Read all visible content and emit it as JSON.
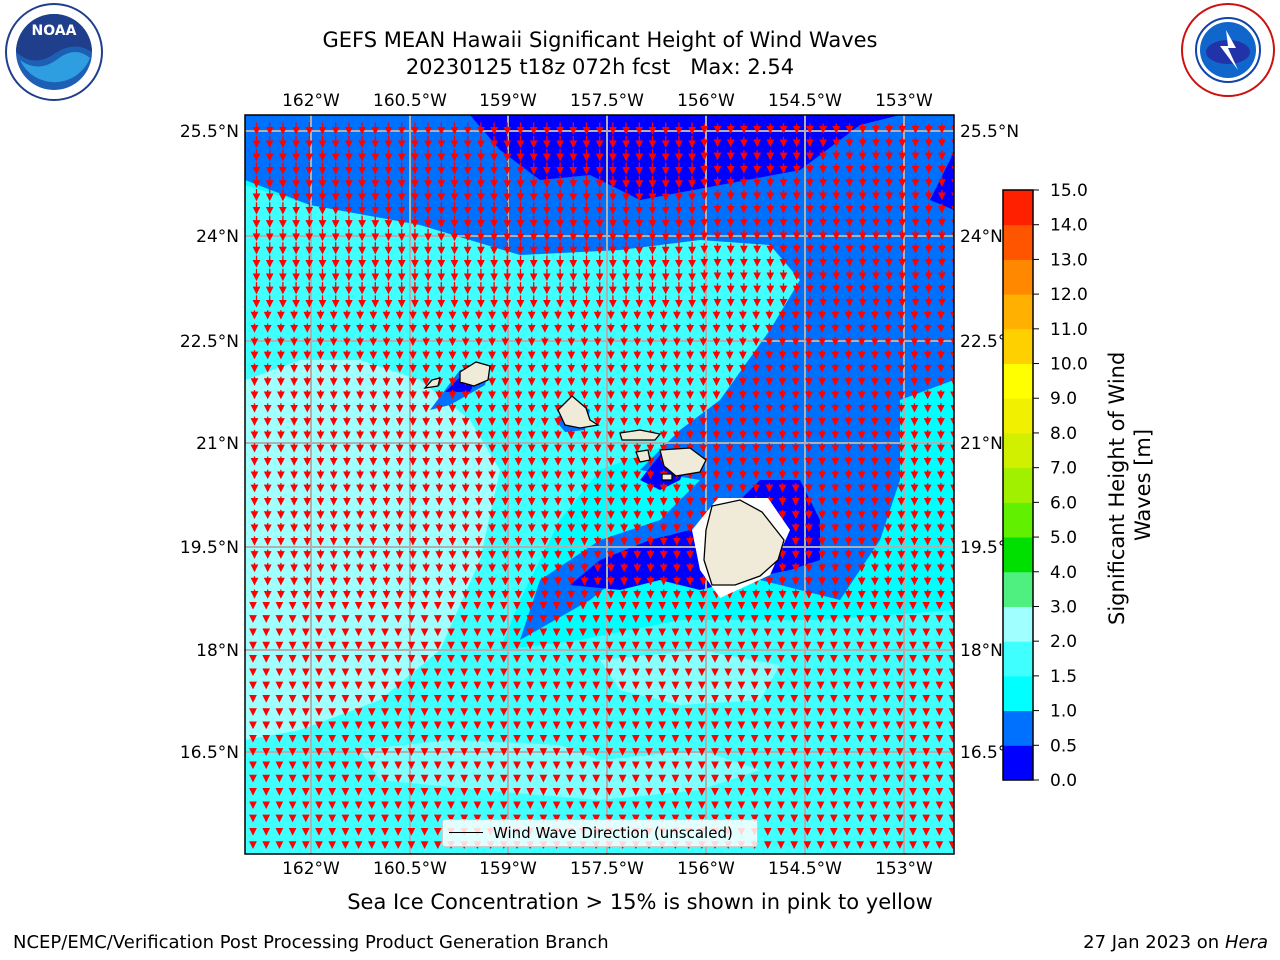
{
  "header": {
    "title_line1": "GEFS MEAN Hawaii Significant Height of Wind Waves",
    "title_line2": "20230125 t18z 072h fcst   Max: 2.54"
  },
  "logos": {
    "left": {
      "icon": "noaa-logo",
      "text": "NOAA",
      "ring_text": "NATIONAL OCEANIC AND ATMOSPHERIC ADMINISTRATION · U.S. DEPARTMENT OF COMMERCE"
    },
    "right": {
      "icon": "nws-logo",
      "ring_text": "NATIONAL WEATHER SERVICE"
    }
  },
  "map": {
    "lon_labels": [
      "162°W",
      "160.5°W",
      "159°W",
      "157.5°W",
      "156°W",
      "154.5°W",
      "153°W"
    ],
    "lat_labels": [
      "25.5°N",
      "24°N",
      "22.5°N",
      "21°N",
      "19.5°N",
      "18°N",
      "16.5°N"
    ],
    "legend_label": "Wind Wave Direction (unscaled)",
    "arrow_color": "#ff0000",
    "land_color": "#efebd8"
  },
  "colorbar": {
    "label": "Significant Height of Wind Waves [m]",
    "label_line1": "Significant Height of Wind",
    "label_line2": "Waves [m]",
    "ticks": [
      "0.0",
      "0.5",
      "1.0",
      "1.5",
      "2.0",
      "3.0",
      "4.0",
      "5.0",
      "6.0",
      "7.0",
      "8.0",
      "9.0",
      "10.0",
      "11.0",
      "12.0",
      "13.0",
      "14.0",
      "15.0"
    ],
    "colors": [
      "#0000ff",
      "#0070ff",
      "#00ffff",
      "#40ffff",
      "#a0ffff",
      "#50f080",
      "#00e000",
      "#60f000",
      "#a0f000",
      "#d0f000",
      "#f0f000",
      "#ffff00",
      "#ffd000",
      "#ffb000",
      "#ff8800",
      "#ff5500",
      "#ff2000"
    ]
  },
  "subtitle": "Sea Ice Concentration > 15% is shown in pink to yellow",
  "footer": {
    "left": "NCEP/EMC/Verification Post Processing Product Generation Branch",
    "right_date": "27 Jan 2023 on ",
    "right_host": "Hera"
  }
}
